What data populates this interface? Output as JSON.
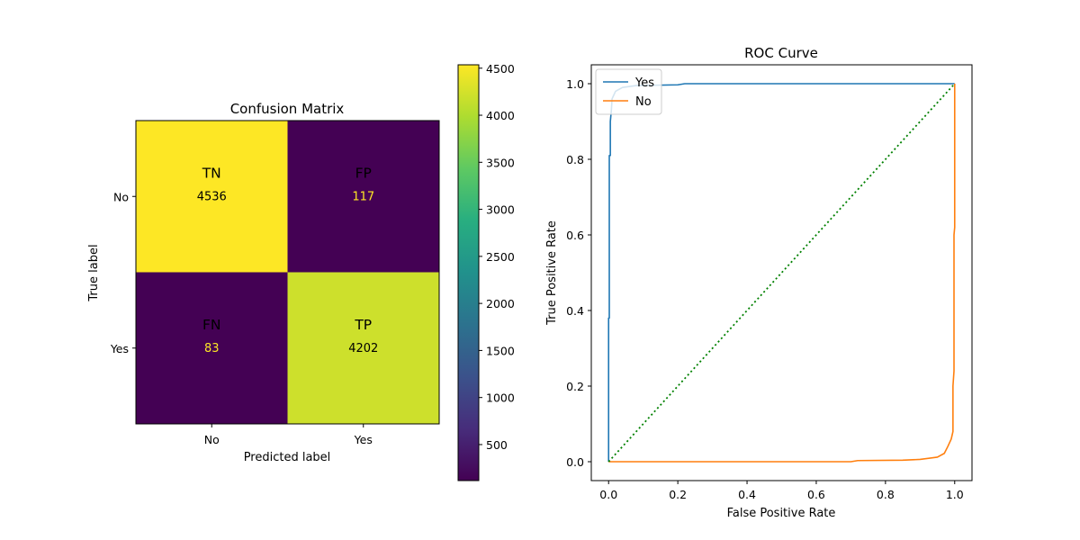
{
  "chart_data": [
    {
      "type": "heatmap",
      "title": "Confusion Matrix",
      "xlabel": "Predicted label",
      "ylabel": "True label",
      "x_categories": [
        "No",
        "Yes"
      ],
      "y_categories": [
        "No",
        "Yes"
      ],
      "cells": [
        [
          {
            "label": "TN",
            "value": 4536
          },
          {
            "label": "FP",
            "value": 117
          }
        ],
        [
          {
            "label": "FN",
            "value": 83
          },
          {
            "label": "TP",
            "value": 4202
          }
        ]
      ],
      "colorbar": {
        "min": 117,
        "max": 4536,
        "colormap": "viridis",
        "ticks": [
          500,
          1000,
          1500,
          2000,
          2500,
          3000,
          3500,
          4000,
          4500
        ],
        "tick_labels": [
          "500",
          "1000",
          "1500",
          "2000",
          "2500",
          "3000",
          "3500",
          "4000",
          "4500"
        ]
      },
      "text_colors": {
        "light_cell": "#000000",
        "dark_cell": "#fde725"
      }
    },
    {
      "type": "line",
      "title": "ROC Curve",
      "xlabel": "False Positive Rate",
      "ylabel": "True Positive Rate",
      "xlim": [
        -0.05,
        1.05
      ],
      "ylim": [
        -0.05,
        1.05
      ],
      "x_ticks": [
        0.0,
        0.2,
        0.4,
        0.6,
        0.8,
        1.0
      ],
      "x_tick_labels": [
        "0.0",
        "0.2",
        "0.4",
        "0.6",
        "0.8",
        "1.0"
      ],
      "y_ticks": [
        0.0,
        0.2,
        0.4,
        0.6,
        0.8,
        1.0
      ],
      "y_tick_labels": [
        "0.0",
        "0.2",
        "0.4",
        "0.6",
        "0.8",
        "1.0"
      ],
      "legend_position": "top-left",
      "series": [
        {
          "name": "Yes",
          "color": "#1f77b4",
          "points": [
            [
              0,
              0
            ],
            [
              0,
              0.38
            ],
            [
              0.002,
              0.38
            ],
            [
              0.002,
              0.81
            ],
            [
              0.005,
              0.81
            ],
            [
              0.005,
              0.9
            ],
            [
              0.008,
              0.93
            ],
            [
              0.01,
              0.96
            ],
            [
              0.02,
              0.98
            ],
            [
              0.04,
              0.99
            ],
            [
              0.08,
              0.995
            ],
            [
              0.2,
              0.997
            ],
            [
              0.22,
              1.0
            ],
            [
              1.0,
              1.0
            ]
          ]
        },
        {
          "name": "No",
          "color": "#ff7f0e",
          "points": [
            [
              0,
              0
            ],
            [
              0.7,
              0.0
            ],
            [
              0.72,
              0.003
            ],
            [
              0.85,
              0.004
            ],
            [
              0.9,
              0.006
            ],
            [
              0.95,
              0.012
            ],
            [
              0.97,
              0.022
            ],
            [
              0.98,
              0.04
            ],
            [
              0.99,
              0.06
            ],
            [
              0.995,
              0.08
            ],
            [
              0.995,
              0.2
            ],
            [
              0.998,
              0.24
            ],
            [
              0.998,
              0.6
            ],
            [
              1.0,
              0.62
            ],
            [
              1.0,
              1.0
            ]
          ]
        },
        {
          "color": "#008000",
          "style": "dotted",
          "points": [
            [
              0,
              0
            ],
            [
              1,
              1
            ]
          ]
        }
      ]
    }
  ]
}
